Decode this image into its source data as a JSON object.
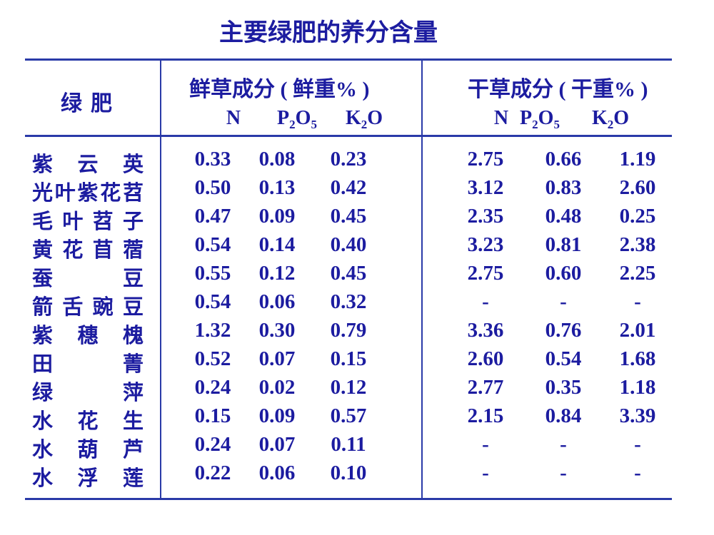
{
  "title": "主要绿肥的养分含量",
  "table": {
    "header": {
      "name": "绿肥",
      "fresh": "鲜草成分 ( 鲜重% )",
      "dry": "干草成分 ( 干重% )",
      "fresh_sub": [
        [
          "N"
        ],
        [
          "P",
          "2",
          "O",
          "5"
        ],
        [
          "K",
          "2",
          "O"
        ]
      ],
      "dry_sub": [
        [
          "N"
        ],
        [
          "P",
          "2",
          "O",
          "5"
        ],
        [
          "K",
          "2",
          "O"
        ]
      ]
    },
    "rows": [
      [
        "紫云英",
        "0.33",
        "0.08",
        "0.23",
        "2.75",
        "0.66",
        "1.19"
      ],
      [
        "光叶紫花苕",
        "0.50",
        "0.13",
        "0.42",
        "3.12",
        "0.83",
        "2.60"
      ],
      [
        "毛叶苕子",
        "0.47",
        "0.09",
        "0.45",
        "2.35",
        "0.48",
        "0.25"
      ],
      [
        "黄花苜蓿",
        "0.54",
        "0.14",
        "0.40",
        "3.23",
        "0.81",
        "2.38"
      ],
      [
        "蚕豆",
        "0.55",
        "0.12",
        "0.45",
        "2.75",
        "0.60",
        "2.25"
      ],
      [
        "箭舌豌豆",
        "0.54",
        "0.06",
        "0.32",
        "-",
        "-",
        "-"
      ],
      [
        "紫穗槐",
        "1.32",
        "0.30",
        "0.79",
        "3.36",
        "0.76",
        "2.01"
      ],
      [
        "田菁",
        "0.52",
        "0.07",
        "0.15",
        "2.60",
        "0.54",
        "1.68"
      ],
      [
        "绿萍",
        "0.24",
        "0.02",
        "0.12",
        "2.77",
        "0.35",
        "1.18"
      ],
      [
        "水花生",
        "0.15",
        "0.09",
        "0.57",
        "2.15",
        "0.84",
        "3.39"
      ],
      [
        "水葫芦",
        "0.24",
        "0.07",
        "0.11",
        "-",
        "-",
        "-"
      ],
      [
        "水浮莲",
        "0.22",
        "0.06",
        "0.10",
        "-",
        "-",
        "-"
      ]
    ]
  }
}
